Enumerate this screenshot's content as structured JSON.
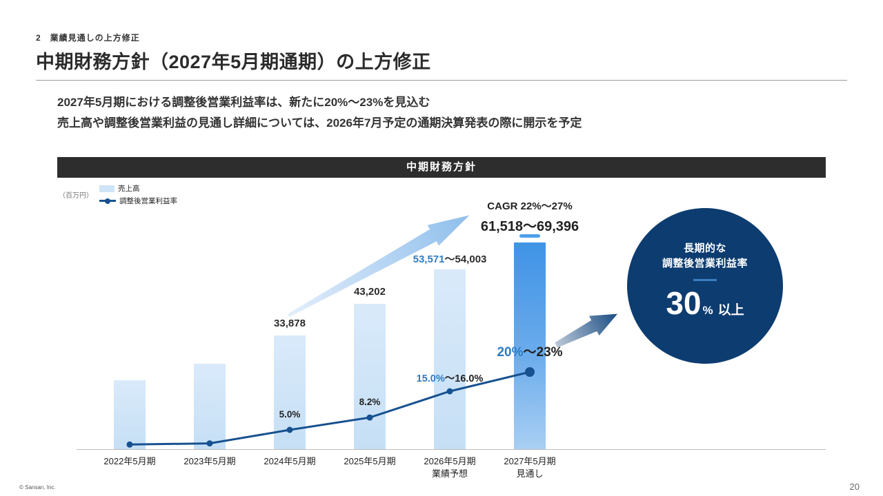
{
  "header": {
    "section_label": "2　業績見通しの上方修正",
    "title": "中期財務方針（2027年5月期通期）の上方修正"
  },
  "lead": {
    "line1": "2027年5月期における調整後営業利益率は、新たに20%〜23%を見込む",
    "line2": "売上高や調整後営業利益の見通し詳細については、2026年7月予定の通期決算発表の際に開示を予定"
  },
  "chart": {
    "panel_title": "中期財務方針",
    "unit_label": "（百万円）",
    "legend": [
      {
        "label": "売上高",
        "swatch": "light-blue-bar"
      },
      {
        "label": "調整後営業利益率",
        "swatch": "navy-line-with-dot"
      }
    ]
  },
  "chart_data": {
    "type": "combo: bar (売上高) + line (調整後営業利益率)",
    "categories": [
      [
        "2022年5月期"
      ],
      [
        "2023年5月期"
      ],
      [
        "2024年5月期"
      ],
      [
        "2025年5月期"
      ],
      [
        "2026年5月期",
        "業績予想"
      ],
      [
        "2027年5月期",
        "見通し"
      ]
    ],
    "revenue_series": {
      "name": "売上高",
      "unit": "百万円",
      "values": [
        20500,
        25500,
        33878,
        43202,
        53571,
        61518
      ],
      "upper_values": [
        null,
        null,
        null,
        null,
        54003,
        69396
      ],
      "values_note": "2022・2023はラベル非表示のため棒の高さからの推定値。レンジ表示年は下限値を棒の高さに使用。",
      "labels": [
        null,
        null,
        [
          {
            "t": "33,878"
          }
        ],
        [
          {
            "t": "43,202"
          }
        ],
        [
          {
            "t": "53,571",
            "hl": true
          },
          {
            "t": "〜54,003"
          }
        ],
        [
          {
            "t": "61,518〜69,396"
          }
        ]
      ]
    },
    "margin_series": {
      "name": "調整後営業利益率",
      "unit": "%",
      "values": [
        1.2,
        1.5,
        5.0,
        8.2,
        15.0,
        20.0
      ],
      "upper_values": [
        null,
        null,
        null,
        null,
        16.0,
        23.0
      ],
      "labels": [
        null,
        null,
        [
          {
            "t": "5.0%"
          }
        ],
        [
          {
            "t": "8.2%"
          }
        ],
        [
          {
            "t": "15.0%",
            "hl": true
          },
          {
            "t": "〜16.0%"
          }
        ],
        [
          {
            "t": "20%",
            "hl": true
          },
          {
            "t": "〜23%"
          }
        ]
      ]
    },
    "cagr_label": "CAGR 22%〜27%",
    "highlight_circle": {
      "line1": "長期的な",
      "line2": "調整後営業利益率",
      "big_value": "30",
      "unit": "%",
      "suffix": "以上"
    },
    "axes": {
      "y_revenue_range_estimate": [
        0,
        70000
      ],
      "y_margin_range_estimate": [
        0,
        25
      ],
      "gridlines": false,
      "legend_position": "top-left"
    },
    "colors": {
      "bar_light": "#cfe4f6",
      "bar_final_gradient_top": "#3f93e6",
      "bar_final_gradient_bottom": "#a9cff3",
      "line_navy": "#17518f",
      "highlight_blue_text": "#2e7cc4",
      "circle_navy": "#0d3c70",
      "panel_header_dark": "#2d2d2d",
      "upper_cap_blue": "#4f9fe9"
    }
  },
  "footer": {
    "copyright": "© Sansan, Inc.",
    "page": "20"
  }
}
